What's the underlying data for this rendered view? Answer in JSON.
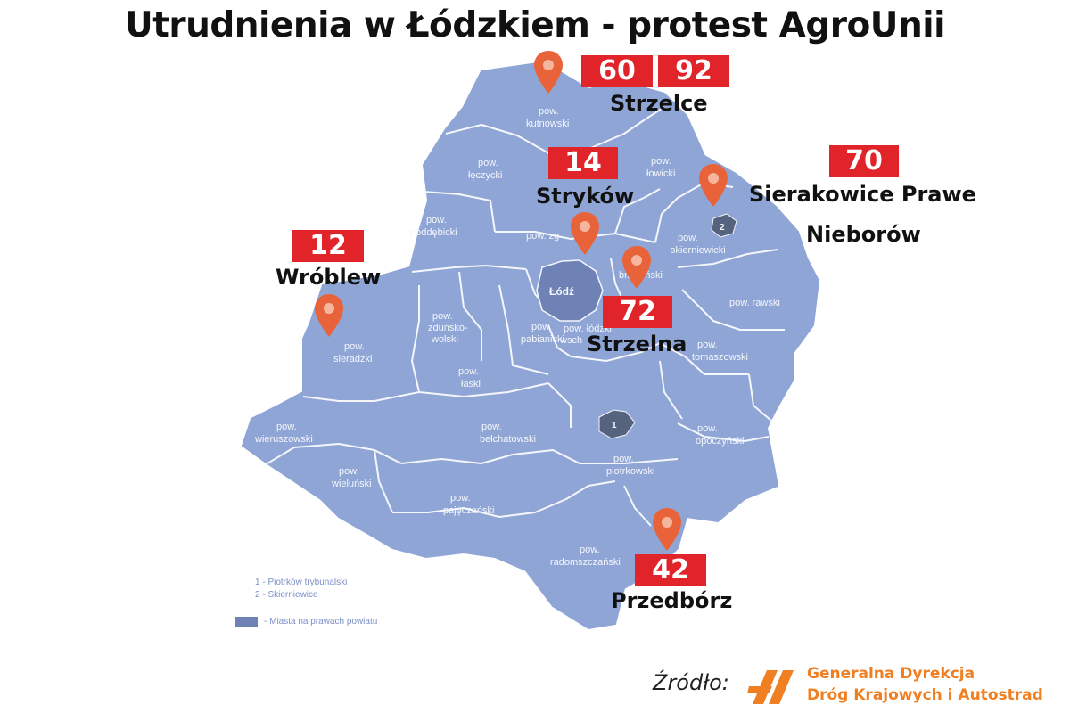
{
  "title": "Utrudnienia w Łódzkiem - protest AgroUnii",
  "colors": {
    "region": "#8fa5d6",
    "border": "#f4f6fb",
    "city": "#6f82b5",
    "badge": "#e1242a",
    "pin": "#e8633a",
    "source_logo": "#f07f21"
  },
  "districts": [
    {
      "name": "kutnowski",
      "prefix": "pow."
    },
    {
      "name": "łęczycki",
      "prefix": "pow."
    },
    {
      "name": "łowicki",
      "prefix": "pow."
    },
    {
      "name": "poddębicki",
      "prefix": "pow."
    },
    {
      "name": "zgierski",
      "prefix": "pow.",
      "visible": "zg"
    },
    {
      "name": "skierniewicki",
      "prefix": "pow."
    },
    {
      "name": "brzeziński",
      "visible": "brzeziński"
    },
    {
      "name": "rawski",
      "prefix": "pow."
    },
    {
      "name": "zduńsko-wolski",
      "prefix": "pow.",
      "lines": [
        "zduńsko-",
        "wolski"
      ]
    },
    {
      "name": "sieradzki",
      "prefix": "pow."
    },
    {
      "name": "pabianicki",
      "prefix": "pow."
    },
    {
      "name": "łódzki wschodni",
      "prefix": "pow.",
      "lines": [
        "łódzki",
        "wsch"
      ]
    },
    {
      "name": "tomaszowski",
      "prefix": "pow."
    },
    {
      "name": "łaski",
      "prefix": "pow."
    },
    {
      "name": "wieruszowski",
      "prefix": "pow."
    },
    {
      "name": "bełchatowski",
      "prefix": "pow."
    },
    {
      "name": "opoczyński",
      "prefix": "pow."
    },
    {
      "name": "wieluński",
      "prefix": "pow."
    },
    {
      "name": "piotrkowski",
      "prefix": "pow."
    },
    {
      "name": "pajęczański",
      "prefix": "pow."
    },
    {
      "name": "radomszczański",
      "prefix": "pow."
    }
  ],
  "cities": [
    {
      "name": "Łódź"
    },
    {
      "name": "Skierniewice",
      "marker": "2"
    },
    {
      "name": "Piotrków Trybunalski",
      "marker": "1"
    }
  ],
  "locations": [
    {
      "name": "Strzelce",
      "road_numbers": [
        "60",
        "92"
      ]
    },
    {
      "name": "Stryków",
      "road_numbers": [
        "14"
      ]
    },
    {
      "name": "Sierakowice Prawe",
      "road_numbers": [
        "70"
      ]
    },
    {
      "name": "Nieborów",
      "road_numbers": []
    },
    {
      "name": "Wróblew",
      "road_numbers": [
        "12"
      ]
    },
    {
      "name": "Strzelna",
      "road_numbers": [
        "72"
      ]
    },
    {
      "name": "Przedbórz",
      "road_numbers": [
        "42"
      ]
    }
  ],
  "legend": {
    "item1": "1 - Piotrków trybunalski",
    "item2": "2 - Skierniewice",
    "item3": "- Miasta na prawach powiatu"
  },
  "source": {
    "label": "Źródło:",
    "org_line1": "Generalna Dyrekcja",
    "org_line2": "Dróg Krajowych i Autostrad"
  }
}
